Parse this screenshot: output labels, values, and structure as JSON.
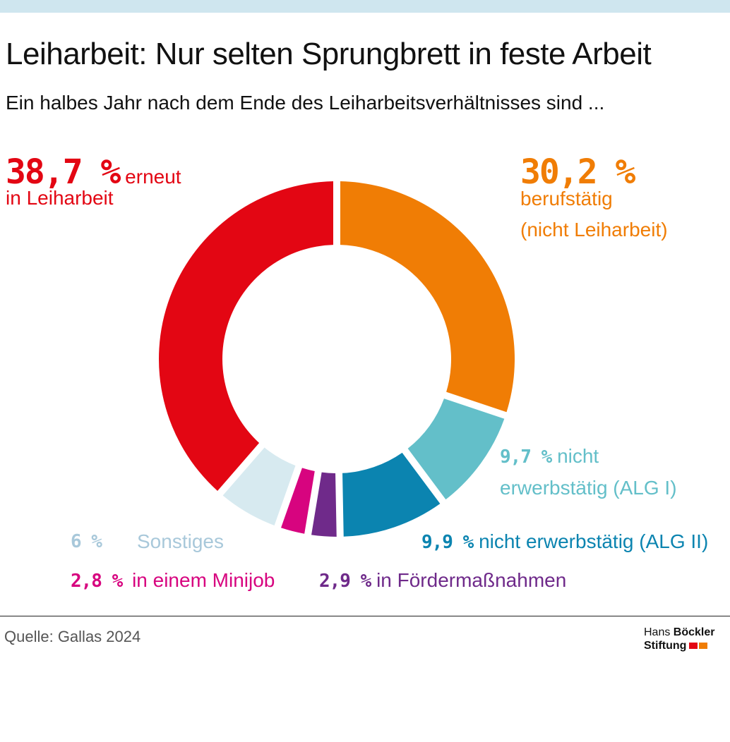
{
  "header": {
    "title": "Leiharbeit: Nur selten Sprungbrett in feste Arbeit",
    "subtitle": "Ein halbes Jahr nach dem Ende des Leiharbeitsverhältnisses sind ..."
  },
  "chart_data": {
    "type": "pie",
    "donut": true,
    "start": "top",
    "direction": "clockwise",
    "series": [
      {
        "key": "berufstaetig",
        "pct_label": "30,2 %",
        "label": "berufstätig (nicht Leiharbeit)",
        "value": 30.2,
        "color": "#f07d05"
      },
      {
        "key": "alg1",
        "pct_label": "9,7 %",
        "label": "nicht erwerbstätig (ALG I)",
        "value": 9.7,
        "color": "#63bfc9"
      },
      {
        "key": "alg2",
        "pct_label": "9,9 %",
        "label": "nicht erwerbstätig (ALG II)",
        "value": 9.9,
        "color": "#0b84b0"
      },
      {
        "key": "foerder",
        "pct_label": "2,9 %",
        "label": "in Fördermaßnahmen",
        "value": 2.9,
        "color": "#6f2a8a"
      },
      {
        "key": "minijob",
        "pct_label": "2,8 %",
        "label": "in einem Minijob",
        "value": 2.8,
        "color": "#d7047f"
      },
      {
        "key": "sonstiges",
        "pct_label": "6 %",
        "label": "Sonstiges",
        "value": 6,
        "color": "#d7eaf0"
      },
      {
        "key": "leiharbeit",
        "pct_label": "38,7 %",
        "label": "erneut in Leiharbeit",
        "value": 38.7,
        "color": "#e30613"
      }
    ]
  },
  "labels": {
    "red": {
      "pct": "38,7 %",
      "line1": "erneut",
      "line2": "in Leiharbeit"
    },
    "orange": {
      "pct": "30,2 %",
      "line1": "berufstätig",
      "line2": "(nicht Leiharbeit)"
    },
    "teal": {
      "pct": "9,7 %",
      "line1": "nicht",
      "line2": "erwerbstätig (ALG I)"
    },
    "blue": {
      "pct": "9,9 %",
      "text": "nicht erwerbstätig (ALG II)"
    },
    "sonstiges": {
      "pct": "6 %",
      "text": "Sonstiges"
    },
    "minijob": {
      "pct": "2,8 %",
      "text": "in einem Minijob"
    },
    "foerder": {
      "pct": "2,9 %",
      "text": "in Fördermaßnahmen"
    }
  },
  "footer": {
    "source": "Quelle: Gallas 2024",
    "logo_line1_a": "Hans ",
    "logo_line1_b": "Böckler",
    "logo_line2": "Stiftung",
    "logo_colors": [
      "#e30613",
      "#f07d05"
    ]
  }
}
